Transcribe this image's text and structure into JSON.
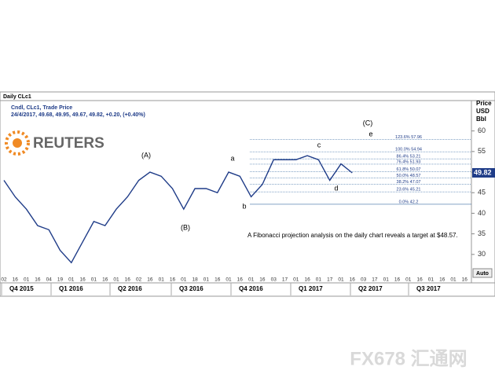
{
  "chart_data": {
    "type": "line",
    "panel_title": "Daily CLc1",
    "series_title": "Cndl, CLc1, Trade Price",
    "quote_line": "24/4/2017, 49.68, 49.95, 49.67, 49.82, +0.20, (+0.40%)",
    "brand": "REUTERS",
    "y_axis_label": "Price\nUSD\nBbl",
    "categories": [
      "02",
      "16",
      "01",
      "16",
      "04",
      "19",
      "01",
      "16",
      "01",
      "16",
      "01",
      "16",
      "02",
      "16",
      "01",
      "16",
      "01",
      "18",
      "01",
      "16",
      "01",
      "16",
      "01",
      "16",
      "03",
      "17",
      "01",
      "16",
      "01",
      "17",
      "01",
      "16",
      "03",
      "17",
      "01",
      "16",
      "01",
      "16",
      "01",
      "16",
      "01",
      "16"
    ],
    "quarters": [
      "Q4 2015",
      "Q1 2016",
      "Q2 2016",
      "Q3 2016",
      "Q4 2016",
      "Q1 2017",
      "Q2 2017",
      "Q3 2017"
    ],
    "series": [
      {
        "name": "CLc1",
        "color": "#1f3c88",
        "values": [
          48,
          44,
          41,
          37,
          36,
          31,
          28,
          33,
          38,
          37,
          41,
          44,
          48,
          50,
          49,
          46,
          41,
          46,
          46,
          45,
          50,
          49,
          44,
          47,
          53,
          53,
          53,
          54,
          53,
          48,
          52,
          49.82,
          null,
          null,
          null,
          null,
          null,
          null,
          null,
          null,
          null,
          null
        ]
      }
    ],
    "last_price": 49.82,
    "ylim": [
      25,
      67
    ],
    "yticks": [
      30,
      35,
      40,
      45,
      50,
      55,
      60
    ],
    "fib_levels": [
      {
        "value": 57.96,
        "label": "123.6% 57.96"
      },
      {
        "value": 54.94,
        "label": "100.0% 54.94"
      },
      {
        "value": 53.21,
        "label": "86.4% 53.21"
      },
      {
        "value": 51.93,
        "label": "76.4% 51.93"
      },
      {
        "value": 50.07,
        "label": "61.8% 50.07"
      },
      {
        "value": 48.57,
        "label": "50.0% 48.57"
      },
      {
        "value": 47.07,
        "label": "38.2% 47.07"
      },
      {
        "value": 45.21,
        "label": "23.6% 45.21"
      },
      {
        "value": 42.2,
        "label": "0.0% 42.2"
      }
    ],
    "wave_labels": [
      "(A)",
      "(B)",
      "(C)",
      "a",
      "b",
      "c",
      "d",
      "e"
    ],
    "annotation": "A Fibonacci projection analysis on the daily chart reveals a target at $48.57.",
    "scale_button": "Auto",
    "watermark": "FX678 汇通网"
  }
}
